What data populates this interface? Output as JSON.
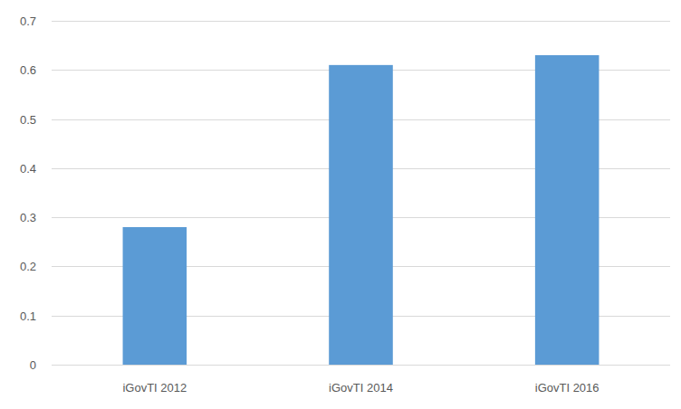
{
  "chart_data": {
    "type": "bar",
    "categories": [
      "iGovTI 2012",
      "iGovTI 2014",
      "iGovTI 2016"
    ],
    "values": [
      0.28,
      0.61,
      0.63
    ],
    "color": "#5b9bd5",
    "ylim": [
      0,
      0.7
    ],
    "yticks": [
      0,
      0.1,
      0.2,
      0.3,
      0.4,
      0.5,
      0.6,
      0.7
    ],
    "grid": true
  }
}
